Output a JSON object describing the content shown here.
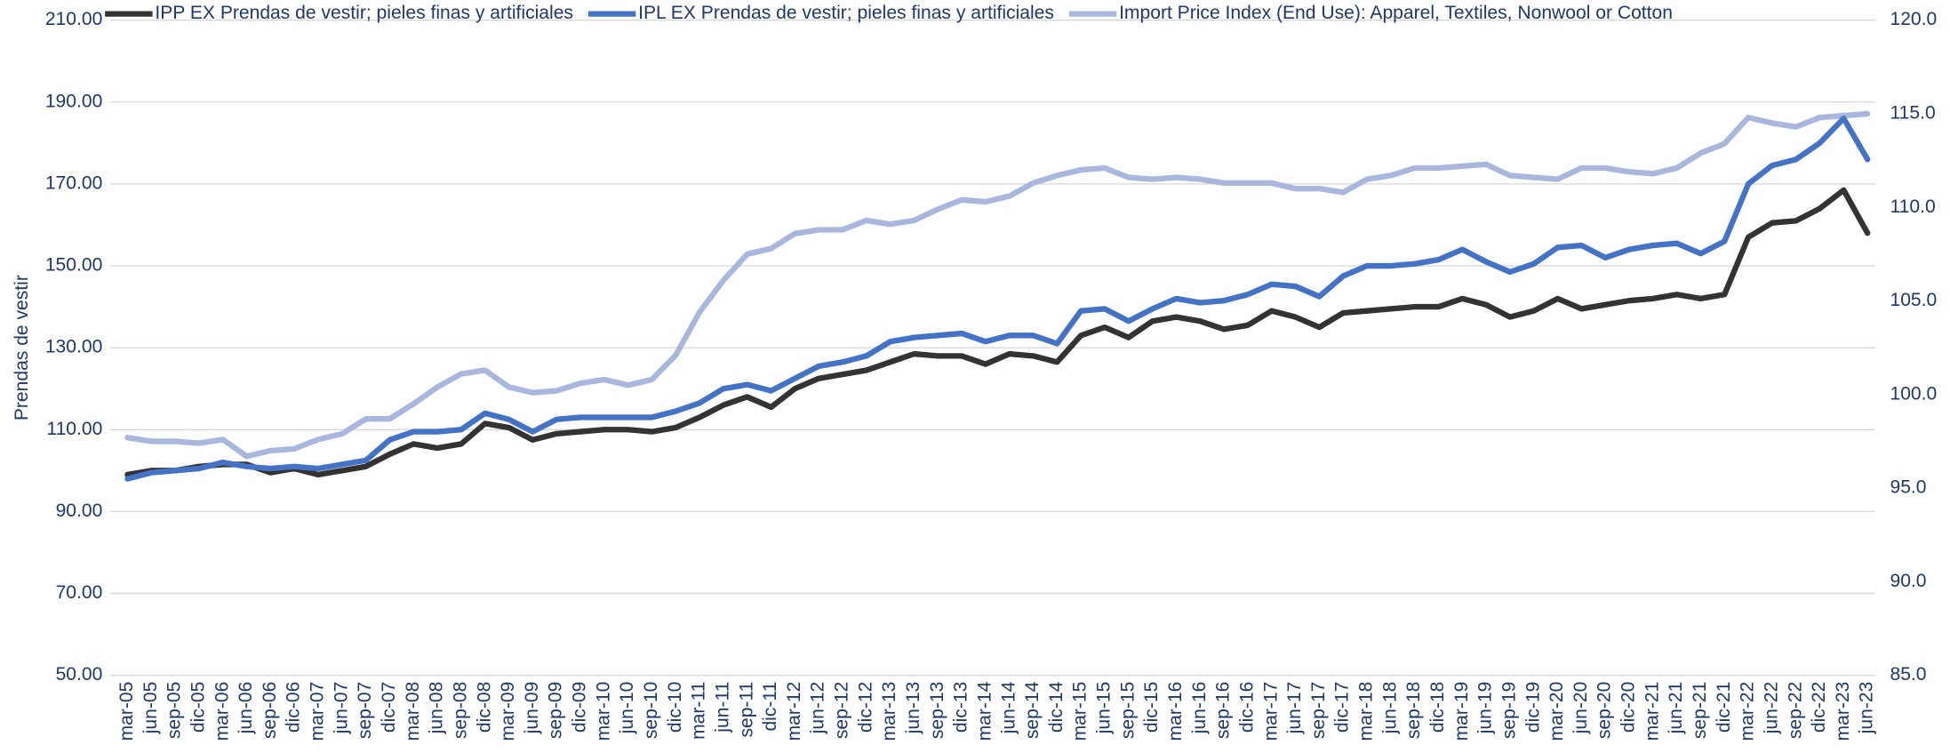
{
  "chart_data": {
    "type": "line",
    "y_label": "Prendas de vestir",
    "categories": [
      "mar-05",
      "jun-05",
      "sep-05",
      "dic-05",
      "mar-06",
      "jun-06",
      "sep-06",
      "dic-06",
      "mar-07",
      "jun-07",
      "sep-07",
      "dic-07",
      "mar-08",
      "jun-08",
      "sep-08",
      "dic-08",
      "mar-09",
      "jun-09",
      "sep-09",
      "dic-09",
      "mar-10",
      "jun-10",
      "sep-10",
      "dic-10",
      "mar-11",
      "jun-11",
      "sep-11",
      "dic-11",
      "mar-12",
      "jun-12",
      "sep-12",
      "dic-12",
      "mar-13",
      "jun-13",
      "sep-13",
      "dic-13",
      "mar-14",
      "jun-14",
      "sep-14",
      "dic-14",
      "mar-15",
      "jun-15",
      "sep-15",
      "dic-15",
      "mar-16",
      "jun-16",
      "sep-16",
      "dic-16",
      "mar-17",
      "jun-17",
      "sep-17",
      "dic-17",
      "mar-18",
      "jun-18",
      "sep-18",
      "dic-18",
      "mar-19",
      "jun-19",
      "sep-19",
      "dic-19",
      "mar-20",
      "jun-20",
      "sep-20",
      "dic-20",
      "mar-21",
      "jun-21",
      "sep-21",
      "dic-21",
      "mar-22",
      "jun-22",
      "sep-22",
      "dic-22",
      "mar-23",
      "jun-23"
    ],
    "series": [
      {
        "name": "IPP EX Prendas de vestir; pieles finas y artificiales",
        "color": "#333333",
        "values": [
          99,
          100,
          100,
          101,
          101.5,
          101.5,
          99.5,
          100.5,
          99,
          100,
          101,
          104,
          106.5,
          105.5,
          106.5,
          111.5,
          110.5,
          107.5,
          109,
          109.5,
          110,
          110,
          109.5,
          110.5,
          113,
          116,
          118,
          115.5,
          120,
          122.5,
          123.5,
          124.5,
          126.5,
          128.5,
          128,
          128,
          126,
          128.5,
          128,
          126.5,
          133,
          135,
          132.5,
          136.5,
          137.5,
          136.5,
          134.5,
          135.5,
          139,
          137.5,
          135,
          138.5,
          139,
          139.5,
          140,
          140,
          142,
          140.5,
          137.5,
          139,
          142,
          139.5,
          140.5,
          141.5,
          142,
          143,
          142,
          143,
          157,
          160.5,
          161,
          164,
          168.5,
          158
        ]
      },
      {
        "name": "IPL EX Prendas de vestir; pieles finas y artificiales",
        "color": "#4472c4",
        "values": [
          98,
          99.5,
          100,
          100.5,
          102,
          101,
          100.5,
          101,
          100.5,
          101.5,
          102.5,
          107.5,
          109.5,
          109.5,
          110,
          114,
          112.5,
          109.5,
          112.5,
          113,
          113,
          113,
          113,
          114.5,
          116.5,
          120,
          121,
          119.5,
          122.5,
          125.5,
          126.5,
          128,
          131.5,
          132.5,
          133,
          133.5,
          131.5,
          133,
          133,
          131,
          139,
          139.5,
          136.5,
          139.5,
          142,
          141,
          141.5,
          143,
          145.5,
          145,
          142.5,
          147.5,
          150,
          150,
          150.5,
          151.5,
          154,
          151,
          148.5,
          150.5,
          154.5,
          155,
          152,
          154,
          155,
          155.5,
          153,
          156,
          170,
          174.5,
          176,
          180,
          186,
          176
        ]
      },
      {
        "name": "Import Price Index (End Use): Apparel, Textiles, Nonwool or Cotton",
        "color": "#a9b7dd",
        "axis": "y2",
        "values": [
          97.7,
          97.5,
          97.5,
          97.4,
          97.6,
          96.7,
          97.0,
          97.1,
          97.6,
          97.9,
          98.7,
          98.7,
          99.5,
          100.4,
          101.1,
          101.3,
          100.4,
          100.1,
          100.2,
          100.6,
          100.8,
          100.5,
          100.8,
          102.1,
          104.4,
          106.1,
          107.5,
          107.8,
          108.6,
          108.8,
          108.8,
          109.3,
          109.1,
          109.3,
          109.9,
          110.4,
          110.3,
          110.6,
          111.3,
          111.7,
          112.0,
          112.1,
          111.6,
          111.5,
          111.6,
          111.5,
          111.3,
          111.3,
          111.3,
          111.0,
          111.0,
          110.8,
          111.5,
          111.7,
          112.1,
          112.1,
          112.2,
          112.3,
          111.7,
          111.6,
          111.5,
          112.1,
          112.1,
          111.9,
          111.8,
          112.1,
          112.9,
          113.4,
          114.8,
          114.5,
          114.3,
          114.8,
          114.9,
          115.0
        ]
      }
    ],
    "ylim": [
      50,
      210
    ],
    "yticks": [
      {
        "value": 50,
        "label": "50.00"
      },
      {
        "value": 70,
        "label": "70.00"
      },
      {
        "value": 90,
        "label": "90.00"
      },
      {
        "value": 110,
        "label": "110.00"
      },
      {
        "value": 130,
        "label": "130.00"
      },
      {
        "value": 150,
        "label": "150.00"
      },
      {
        "value": 170,
        "label": "170.00"
      },
      {
        "value": 190,
        "label": "190.00"
      },
      {
        "value": 210,
        "label": "210.00"
      }
    ],
    "y2lim": [
      85,
      120
    ],
    "y2ticks": [
      {
        "value": 85,
        "label": "85.0"
      },
      {
        "value": 90,
        "label": "90.0"
      },
      {
        "value": 95,
        "label": "95.0"
      },
      {
        "value": 100,
        "label": "100.0"
      },
      {
        "value": 105,
        "label": "105.0"
      },
      {
        "value": 110,
        "label": "110.0"
      },
      {
        "value": 115,
        "label": "115.0"
      },
      {
        "value": 120,
        "label": "120.0"
      }
    ],
    "grid": true,
    "legend": "top"
  }
}
